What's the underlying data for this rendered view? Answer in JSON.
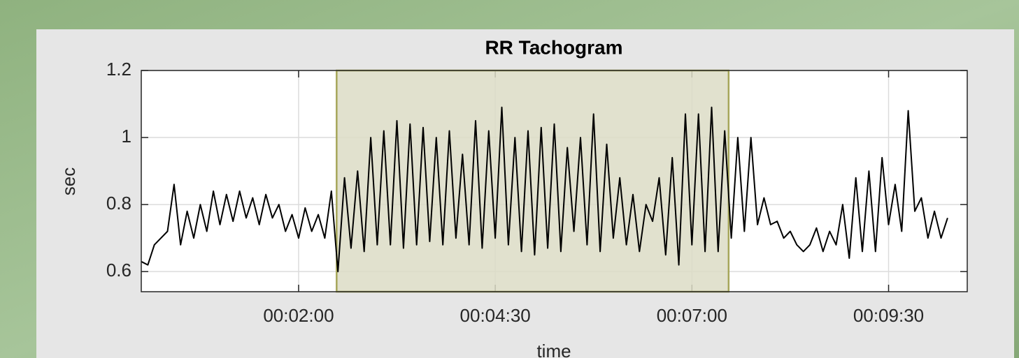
{
  "chart_data": {
    "type": "line",
    "title": "RR Tachogram",
    "xlabel": "time",
    "ylabel": "sec",
    "x": [
      0,
      5,
      10,
      15,
      20,
      25,
      30,
      35,
      40,
      45,
      50,
      55,
      60,
      65,
      70,
      75,
      80,
      85,
      90,
      95,
      100,
      105,
      110,
      115,
      120,
      125,
      130,
      135,
      140,
      145,
      150,
      155,
      160,
      165,
      170,
      175,
      180,
      185,
      190,
      195,
      200,
      205,
      210,
      215,
      220,
      225,
      230,
      235,
      240,
      245,
      250,
      255,
      260,
      265,
      270,
      275,
      280,
      285,
      290,
      295,
      300,
      305,
      310,
      315,
      320,
      325,
      330,
      335,
      340,
      345,
      350,
      355,
      360,
      365,
      370,
      375,
      380,
      385,
      390,
      395,
      400,
      405,
      410,
      415,
      420,
      425,
      430,
      435,
      440,
      445,
      450,
      455,
      460,
      465,
      470,
      475,
      480,
      485,
      490,
      495,
      500,
      505,
      510,
      515,
      520,
      525,
      530,
      535,
      540,
      545,
      550,
      555,
      560,
      565,
      570,
      575,
      580,
      585,
      590,
      595,
      600,
      605,
      610,
      615
    ],
    "values": [
      0.63,
      0.62,
      0.68,
      0.7,
      0.72,
      0.86,
      0.68,
      0.78,
      0.7,
      0.8,
      0.72,
      0.84,
      0.74,
      0.83,
      0.75,
      0.84,
      0.76,
      0.82,
      0.74,
      0.83,
      0.76,
      0.8,
      0.72,
      0.77,
      0.7,
      0.79,
      0.72,
      0.77,
      0.7,
      0.84,
      0.6,
      0.88,
      0.67,
      0.9,
      0.66,
      1.0,
      0.68,
      1.02,
      0.68,
      1.05,
      0.67,
      1.04,
      0.68,
      1.03,
      0.69,
      1.0,
      0.68,
      1.02,
      0.7,
      0.95,
      0.68,
      1.05,
      0.67,
      1.02,
      0.7,
      1.09,
      0.68,
      1.0,
      0.66,
      1.02,
      0.65,
      1.03,
      0.67,
      1.04,
      0.66,
      0.97,
      0.72,
      1.0,
      0.68,
      1.07,
      0.66,
      0.98,
      0.7,
      0.88,
      0.68,
      0.83,
      0.66,
      0.8,
      0.75,
      0.88,
      0.65,
      0.94,
      0.62,
      1.07,
      0.68,
      1.07,
      0.66,
      1.09,
      0.66,
      1.02,
      0.7,
      1.0,
      0.72,
      1.0,
      0.74,
      0.82,
      0.74,
      0.75,
      0.7,
      0.72,
      0.68,
      0.66,
      0.68,
      0.73,
      0.66,
      0.72,
      0.68,
      0.8,
      0.64,
      0.88,
      0.66,
      0.9,
      0.66,
      0.94,
      0.74,
      0.86,
      0.72,
      1.08,
      0.78,
      0.82,
      0.7,
      0.78,
      0.7,
      0.76
    ],
    "color": "#000000",
    "highlight": [
      149,
      448
    ],
    "highlight_color": "#dcdcc6",
    "highlight_edge": "#a6a65a",
    "xlim": [
      0,
      630
    ],
    "xticks": [
      {
        "value": 120,
        "label": "00:02:00"
      },
      {
        "value": 270,
        "label": "00:04:30"
      },
      {
        "value": 420,
        "label": "00:07:00"
      },
      {
        "value": 570,
        "label": "00:09:30"
      }
    ],
    "ylim": [
      0.54,
      1.2
    ],
    "yticks": [
      0.6,
      0.8,
      1,
      1.2
    ],
    "grid": true
  }
}
